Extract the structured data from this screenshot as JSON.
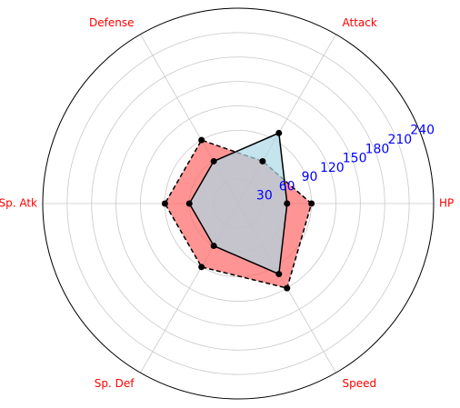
{
  "chart_data": {
    "type": "radar",
    "categories": [
      "HP",
      "Attack",
      "Defense",
      "Sp. Atk",
      "Sp. Def",
      "Speed"
    ],
    "r_ticks": [
      30,
      60,
      90,
      120,
      150,
      180,
      210,
      240
    ],
    "r_max": 240,
    "grid": true,
    "series": [
      {
        "values": [
          60,
          100,
          60,
          60,
          60,
          100
        ],
        "fill": "#add8e6",
        "stroke": "#000000",
        "linestyle": "solid"
      },
      {
        "values": [
          90,
          60,
          90,
          90,
          90,
          120
        ],
        "fill": "#ff6666",
        "stroke": "#000000",
        "linestyle": "dashed"
      }
    ],
    "label_color": "#ff0000",
    "tick_color": "#0000ff"
  }
}
